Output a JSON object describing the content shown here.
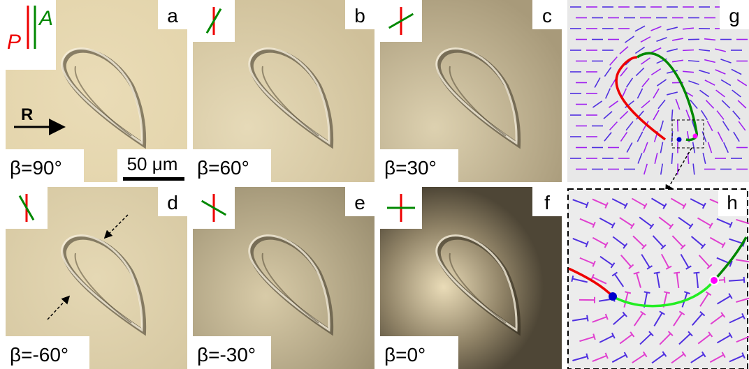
{
  "panels": [
    {
      "letter": "a",
      "beta": "β=90°"
    },
    {
      "letter": "b",
      "beta": "β=60°"
    },
    {
      "letter": "c",
      "beta": "β=30°"
    },
    {
      "letter": "d",
      "beta": "β=-60°"
    },
    {
      "letter": "e",
      "beta": "β=-30°"
    },
    {
      "letter": "f",
      "beta": "β=0°"
    }
  ],
  "director_panels": [
    {
      "letter": "g"
    },
    {
      "letter": "h"
    }
  ],
  "polarizer_label": "P",
  "analyzer_label": "A",
  "rubbing_label": "R",
  "scale_bar": "50 μm"
}
